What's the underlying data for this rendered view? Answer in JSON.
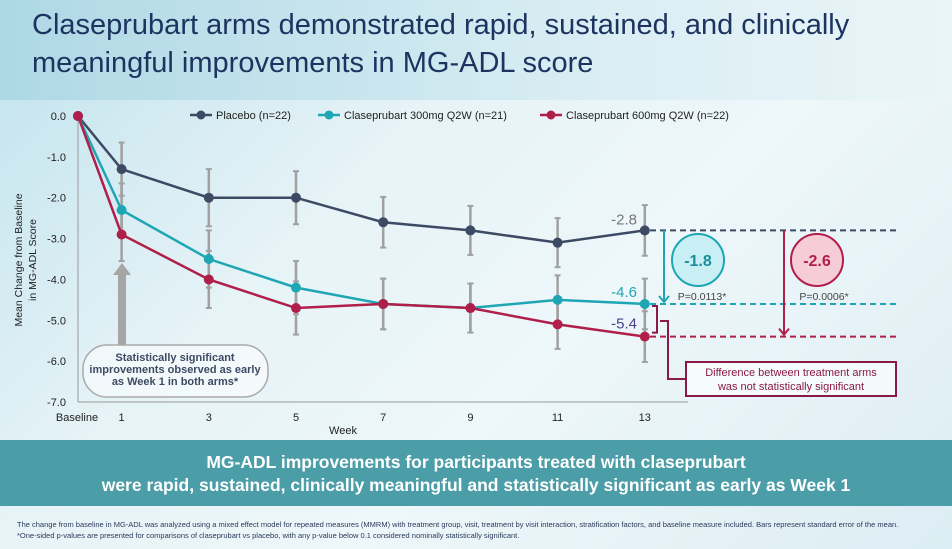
{
  "title": "Claseprubart arms demonstrated rapid, sustained, and clinically meaningful improvements in MG-ADL score",
  "chart_data": {
    "type": "line",
    "xlabel": "Week",
    "ylabel_lines": [
      "Mean Change from Baseline",
      "in MG-ADL Score"
    ],
    "x": [
      0,
      1,
      3,
      5,
      7,
      9,
      11,
      13
    ],
    "x_tick_labels": [
      "Baseline",
      "1",
      "3",
      "5",
      "7",
      "9",
      "11",
      "13"
    ],
    "xlim": [
      0,
      14
    ],
    "ylim": [
      -7,
      0
    ],
    "y_ticks": [
      0,
      -1,
      -2,
      -3,
      -4,
      -5,
      -6,
      -7
    ],
    "y_tick_labels": [
      "0.0",
      "-1.0",
      "-2.0",
      "-3.0",
      "-4.0",
      "-5.0",
      "-6.0",
      "-7.0"
    ],
    "legend_placement": "top",
    "series": [
      {
        "name": "Placebo (n=22)",
        "color": "#3d4a63",
        "values": [
          0,
          -1.3,
          -2.0,
          -2.0,
          -2.6,
          -2.8,
          -3.1,
          -2.8
        ],
        "se": [
          0,
          0.65,
          0.7,
          0.65,
          0.62,
          0.6,
          0.6,
          0.62
        ]
      },
      {
        "name": "Claseprubart 300mg Q2W (n=21)",
        "color": "#1fa6b4",
        "values": [
          0,
          -2.3,
          -3.5,
          -4.2,
          -4.6,
          -4.7,
          -4.5,
          -4.6
        ],
        "se": [
          0,
          0.65,
          0.7,
          0.65,
          0.62,
          0.6,
          0.6,
          0.62
        ]
      },
      {
        "name": "Claseprubart 600mg Q2W (n=22)",
        "color": "#b01f4a",
        "values": [
          0,
          -2.9,
          -4.0,
          -4.7,
          -4.6,
          -4.7,
          -5.1,
          -5.4
        ],
        "se": [
          0,
          0.65,
          0.7,
          0.65,
          0.62,
          0.6,
          0.6,
          0.62
        ]
      }
    ],
    "annotations": {
      "end_labels": [
        "-2.8",
        "-4.6",
        "-5.4"
      ],
      "diff_300": "-1.8",
      "p_300": "P=0.0113*",
      "diff_600": "-2.6",
      "p_600": "P=0.0006*",
      "callout_week1": [
        "Statistically significant",
        "improvements observed as early",
        "as Week 1 in both arms*"
      ],
      "callout_arms": [
        "Difference between treatment arms",
        "was not statistically significant"
      ]
    }
  },
  "banner": {
    "line1": "MG-ADL improvements for participants treated with claseprubart",
    "line2": "were rapid, sustained, clinically meaningful and statistically significant as early as Week 1"
  },
  "footnotes": [
    "The change from baseline in MG-ADL was analyzed using a mixed effect model for repeated measures (MMRM) with treatment group, visit, treatment by visit interaction, stratification factors, and baseline measure included. Bars represent standard error of the mean.",
    "*One-sided p-values are presented for comparisons of claseprubart vs placebo, with any p-value below 0.1 considered nominally statistically significant."
  ]
}
